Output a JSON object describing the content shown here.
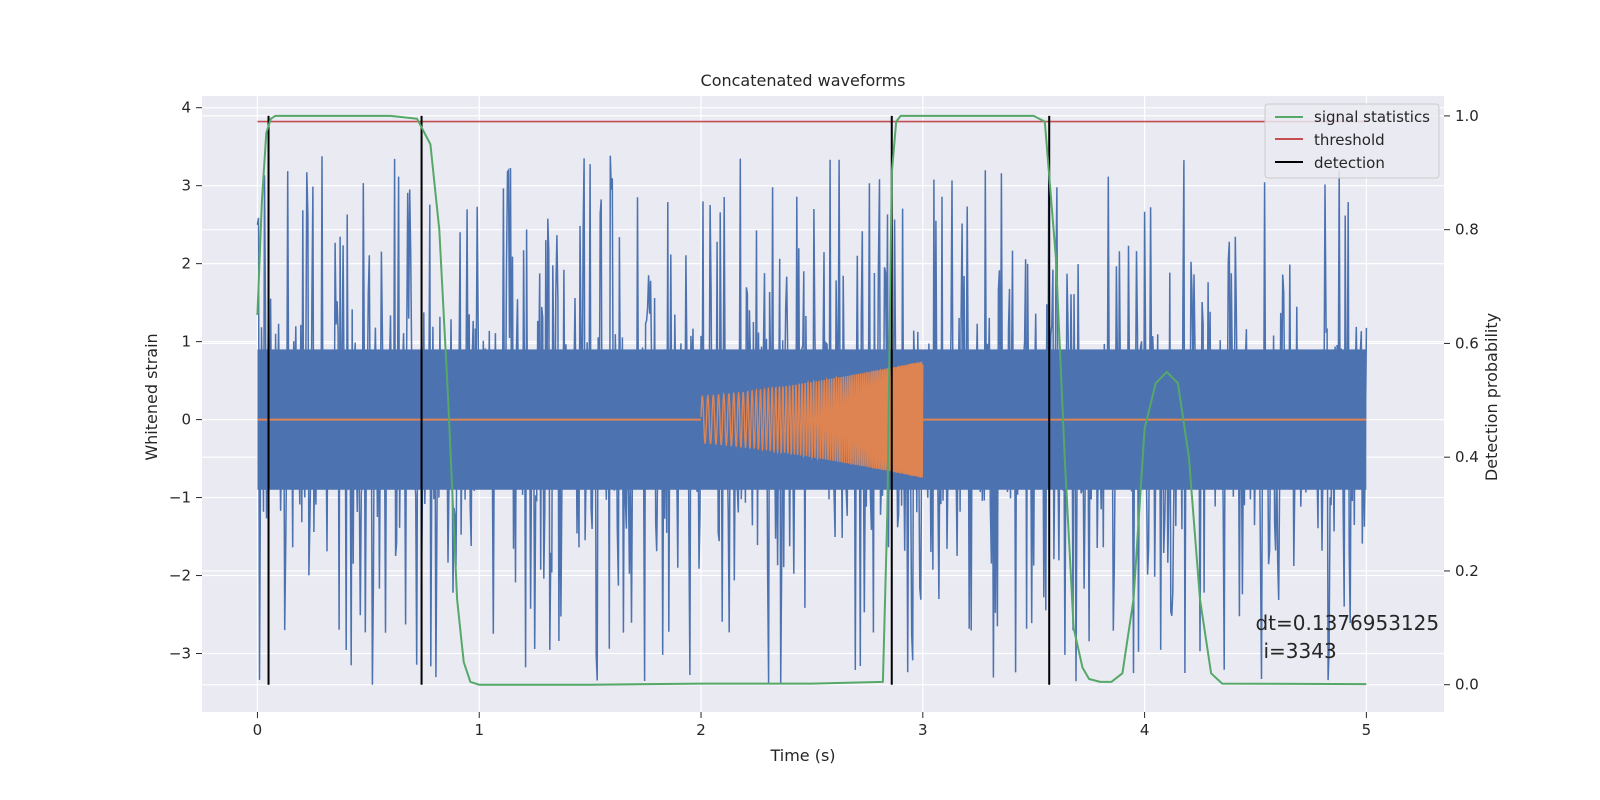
{
  "chart_data": {
    "type": "line",
    "title": "Concatenated waveforms",
    "xlabel": "Time (s)",
    "ylabel_left": "Whitened strain",
    "ylabel_right": "Detection probability",
    "xlim": [
      -0.25,
      5.35
    ],
    "ylim_left": [
      -3.75,
      4.15
    ],
    "ylim_right": [
      -0.048,
      1.035
    ],
    "x_ticks": [
      0,
      1,
      2,
      3,
      4,
      5
    ],
    "x_tick_labels": [
      "0",
      "1",
      "2",
      "3",
      "4",
      "5"
    ],
    "y_left_ticks": [
      -3,
      -2,
      -1,
      0,
      1,
      2,
      3,
      4
    ],
    "y_left_tick_labels": [
      "−3",
      "−2",
      "−1",
      "0",
      "1",
      "2",
      "3",
      "4"
    ],
    "y_right_ticks": [
      0.0,
      0.2,
      0.4,
      0.6,
      0.8,
      1.0
    ],
    "y_right_tick_labels": [
      "0.0",
      "0.2",
      "0.4",
      "0.6",
      "0.8",
      "1.0"
    ],
    "grid": true,
    "legend_position": "top-right",
    "series": [
      {
        "name": "",
        "axis": "left",
        "color": "#4c72b0",
        "kind": "noise",
        "x_range": [
          0,
          5
        ],
        "core_amplitude": 1.2,
        "peak_amplitude": 3.4
      },
      {
        "name": "",
        "axis": "left",
        "color": "#dd8452",
        "kind": "chirp",
        "x_range": [
          0,
          5
        ],
        "chirp_start": 2.0,
        "chirp_end": 3.0,
        "amplitude_start": 0.3,
        "amplitude_end": 0.75
      },
      {
        "name": "signal statistics",
        "axis": "right",
        "color": "#55a868",
        "x": [
          0.0,
          0.02,
          0.04,
          0.06,
          0.08,
          0.1,
          0.6,
          0.72,
          0.78,
          0.82,
          0.86,
          0.9,
          0.93,
          0.96,
          1.0,
          1.5,
          2.0,
          2.5,
          2.82,
          2.84,
          2.86,
          2.88,
          2.9,
          3.5,
          3.55,
          3.6,
          3.64,
          3.68,
          3.72,
          3.75,
          3.8,
          3.85,
          3.9,
          3.95,
          4.0,
          4.05,
          4.1,
          4.15,
          4.2,
          4.25,
          4.3,
          4.35,
          5.0
        ],
        "y": [
          0.65,
          0.85,
          0.97,
          0.995,
          1.0,
          1.0,
          1.0,
          0.995,
          0.95,
          0.8,
          0.5,
          0.15,
          0.04,
          0.005,
          0.0,
          0.0,
          0.002,
          0.002,
          0.005,
          0.3,
          0.9,
          0.99,
          1.0,
          1.0,
          0.99,
          0.75,
          0.4,
          0.1,
          0.03,
          0.01,
          0.005,
          0.005,
          0.02,
          0.15,
          0.45,
          0.53,
          0.55,
          0.53,
          0.4,
          0.15,
          0.02,
          0.002,
          0.001
        ]
      },
      {
        "name": "threshold",
        "axis": "right",
        "color": "#c44e52",
        "x": [
          0,
          5
        ],
        "y": [
          0.99,
          0.99
        ]
      },
      {
        "name": "detection",
        "axis": "right",
        "color": "#000000",
        "kind": "vlines",
        "x": [
          0.05,
          0.74,
          2.86,
          3.57
        ],
        "y_range": [
          0.0,
          1.0
        ]
      }
    ],
    "annotation": {
      "line1": "dt=0.1376953125",
      "line2": "i=3343",
      "x": 4.5,
      "y": -2.7
    }
  }
}
